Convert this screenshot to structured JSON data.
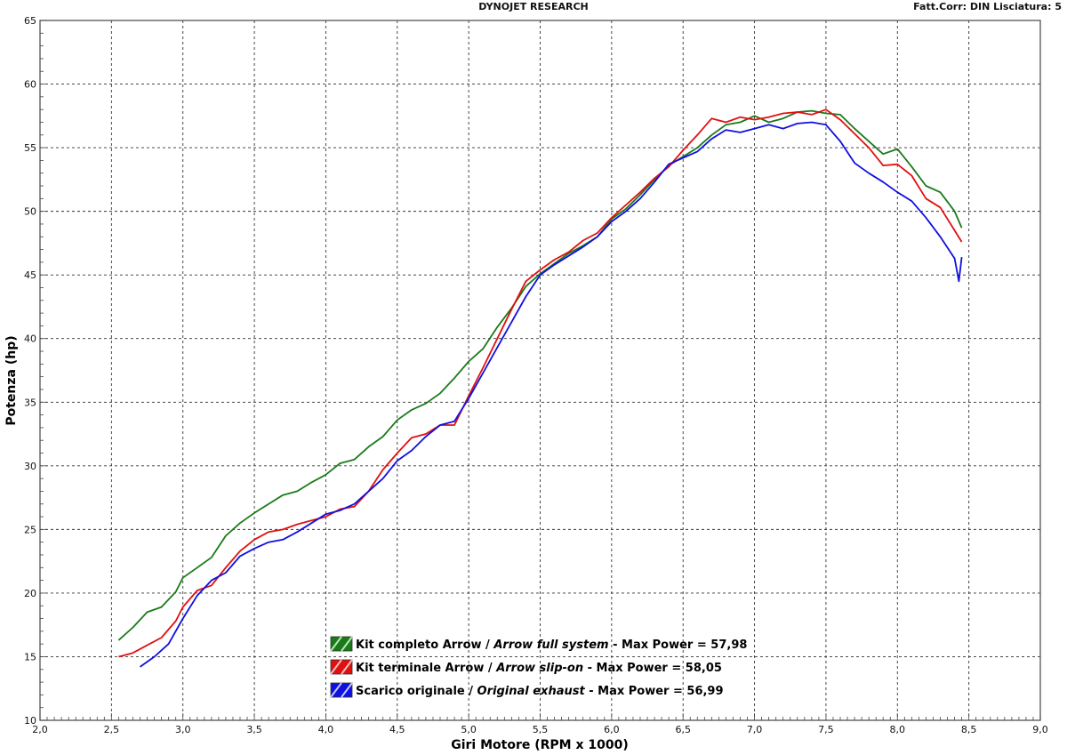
{
  "header": {
    "title": "DYNOJET RESEARCH",
    "correction": "Fatt.Corr: DIN  Lisciatura: 5"
  },
  "chart_data": {
    "type": "line",
    "xlabel": "Giri Motore (RPM x 1000)",
    "ylabel": "Potenza (hp)",
    "xlim": [
      2.0,
      9.0
    ],
    "ylim": [
      10,
      65
    ],
    "x_ticks": [
      "2,0",
      "2,5",
      "3,0",
      "3,5",
      "4,0",
      "4,5",
      "5,0",
      "5,5",
      "6,0",
      "6,5",
      "7,0",
      "7,5",
      "8,0",
      "8,5",
      "9,0"
    ],
    "y_ticks": [
      "10",
      "15",
      "20",
      "25",
      "30",
      "35",
      "40",
      "45",
      "50",
      "55",
      "60",
      "65"
    ],
    "grid": true,
    "legend_position": "bottom-center",
    "series": [
      {
        "name": "Kit completo Arrow",
        "name_en": "Arrow full system",
        "max_label": "Max Power = 57,98",
        "color": "#1a7a1a",
        "x": [
          2.55,
          2.65,
          2.75,
          2.85,
          2.95,
          3.0,
          3.1,
          3.2,
          3.3,
          3.4,
          3.5,
          3.6,
          3.7,
          3.8,
          3.9,
          4.0,
          4.1,
          4.2,
          4.3,
          4.4,
          4.5,
          4.6,
          4.7,
          4.8,
          4.9,
          5.0,
          5.1,
          5.2,
          5.3,
          5.4,
          5.5,
          5.6,
          5.7,
          5.8,
          5.9,
          6.0,
          6.1,
          6.2,
          6.3,
          6.4,
          6.5,
          6.6,
          6.7,
          6.8,
          6.9,
          7.0,
          7.1,
          7.2,
          7.3,
          7.4,
          7.5,
          7.6,
          7.7,
          7.8,
          7.9,
          8.0,
          8.1,
          8.2,
          8.3,
          8.4,
          8.45
        ],
        "y": [
          16.3,
          17.3,
          18.5,
          18.9,
          20.1,
          21.2,
          22.0,
          22.8,
          24.5,
          25.5,
          26.3,
          27.0,
          27.7,
          28.0,
          28.7,
          29.3,
          30.2,
          30.5,
          31.5,
          32.3,
          33.6,
          34.4,
          34.9,
          35.7,
          36.9,
          38.2,
          39.2,
          40.9,
          42.4,
          44.1,
          45.1,
          45.9,
          46.7,
          47.3,
          48.0,
          49.4,
          50.2,
          51.3,
          52.5,
          53.6,
          54.3,
          55.0,
          56.0,
          56.8,
          57.0,
          57.5,
          57.0,
          57.3,
          57.8,
          57.9,
          57.7,
          57.6,
          56.5,
          55.5,
          54.5,
          54.9,
          53.5,
          52.0,
          51.5,
          50.0,
          48.7
        ]
      },
      {
        "name": "Kit terminale Arrow",
        "name_en": "Arrow slip-on",
        "max_label": "Max Power = 58,05",
        "color": "#e01010",
        "x": [
          2.55,
          2.65,
          2.75,
          2.85,
          2.95,
          3.0,
          3.1,
          3.2,
          3.3,
          3.4,
          3.5,
          3.6,
          3.7,
          3.8,
          3.9,
          4.0,
          4.1,
          4.2,
          4.3,
          4.4,
          4.5,
          4.6,
          4.7,
          4.8,
          4.9,
          5.0,
          5.1,
          5.2,
          5.3,
          5.4,
          5.5,
          5.6,
          5.7,
          5.8,
          5.9,
          6.0,
          6.1,
          6.2,
          6.3,
          6.4,
          6.5,
          6.6,
          6.7,
          6.8,
          6.9,
          7.0,
          7.1,
          7.2,
          7.3,
          7.4,
          7.5,
          7.6,
          7.7,
          7.8,
          7.9,
          8.0,
          8.1,
          8.2,
          8.3,
          8.4,
          8.45
        ],
        "y": [
          15.0,
          15.3,
          15.9,
          16.5,
          17.8,
          18.9,
          20.2,
          20.6,
          22.0,
          23.3,
          24.2,
          24.8,
          25.0,
          25.4,
          25.7,
          26.0,
          26.6,
          26.8,
          28.0,
          29.7,
          31.0,
          32.2,
          32.5,
          33.2,
          33.2,
          35.5,
          37.7,
          40.0,
          42.3,
          44.5,
          45.4,
          46.2,
          46.8,
          47.7,
          48.3,
          49.5,
          50.5,
          51.5,
          52.6,
          53.5,
          54.8,
          56.0,
          57.3,
          57.0,
          57.4,
          57.2,
          57.4,
          57.7,
          57.8,
          57.6,
          58.0,
          57.2,
          56.1,
          55.0,
          53.6,
          53.7,
          52.8,
          51.0,
          50.3,
          48.5,
          47.6
        ]
      },
      {
        "name": "Scarico originale",
        "name_en": "Original exhaust",
        "max_label": "Max Power = 56,99",
        "color": "#1010e0",
        "x": [
          2.7,
          2.8,
          2.9,
          3.0,
          3.1,
          3.2,
          3.3,
          3.4,
          3.5,
          3.6,
          3.7,
          3.8,
          3.9,
          4.0,
          4.1,
          4.2,
          4.3,
          4.4,
          4.5,
          4.6,
          4.7,
          4.8,
          4.9,
          5.0,
          5.1,
          5.2,
          5.3,
          5.4,
          5.5,
          5.6,
          5.7,
          5.8,
          5.9,
          6.0,
          6.1,
          6.2,
          6.3,
          6.4,
          6.5,
          6.6,
          6.7,
          6.8,
          6.9,
          7.0,
          7.1,
          7.2,
          7.3,
          7.4,
          7.5,
          7.6,
          7.7,
          7.8,
          7.9,
          8.0,
          8.1,
          8.2,
          8.3,
          8.4,
          8.43,
          8.45
        ],
        "y": [
          14.2,
          15.0,
          16.0,
          18.0,
          19.8,
          21.0,
          21.6,
          22.9,
          23.5,
          24.0,
          24.2,
          24.8,
          25.5,
          26.2,
          26.5,
          27.0,
          28.0,
          29.0,
          30.4,
          31.2,
          32.3,
          33.2,
          33.5,
          35.3,
          37.3,
          39.3,
          41.3,
          43.3,
          45.0,
          45.8,
          46.5,
          47.2,
          48.0,
          49.2,
          50.0,
          51.0,
          52.3,
          53.7,
          54.2,
          54.7,
          55.7,
          56.4,
          56.2,
          56.5,
          56.8,
          56.5,
          56.9,
          57.0,
          56.8,
          55.5,
          53.8,
          53.0,
          52.3,
          51.5,
          50.8,
          49.5,
          48.0,
          46.3,
          44.5,
          46.4
        ]
      }
    ]
  }
}
